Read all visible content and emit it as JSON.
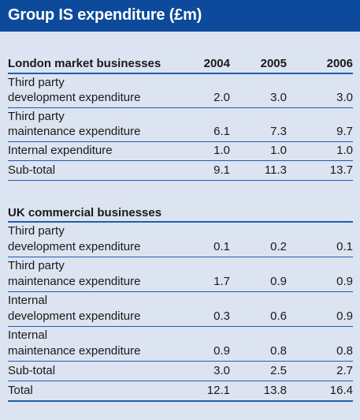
{
  "title": "Group IS expenditure (£m)",
  "years": [
    "2004",
    "2005",
    "2006"
  ],
  "london": {
    "heading": "London market businesses",
    "rows": [
      {
        "line1": "Third party",
        "line2": "development expenditure",
        "v": [
          "2.0",
          "3.0",
          "3.0"
        ]
      },
      {
        "line1": "Third party",
        "line2": "maintenance  expenditure",
        "v": [
          "6.1",
          "7.3",
          "9.7"
        ]
      },
      {
        "line1": "",
        "line2": "Internal expenditure",
        "v": [
          "1.0",
          "1.0",
          "1.0"
        ]
      },
      {
        "line1": "",
        "line2": "Sub-total",
        "v": [
          "9.1",
          "11.3",
          "13.7"
        ]
      }
    ]
  },
  "uk": {
    "heading": "UK commercial businesses",
    "rows": [
      {
        "line1": "Third party",
        "line2": "development expenditure",
        "v": [
          "0.1",
          "0.2",
          "0.1"
        ]
      },
      {
        "line1": "Third party",
        "line2": "maintenance expenditure",
        "v": [
          "1.7",
          "0.9",
          "0.9"
        ]
      },
      {
        "line1": "Internal",
        "line2": "development expenditure",
        "v": [
          "0.3",
          "0.6",
          "0.9"
        ]
      },
      {
        "line1": "Internal",
        "line2": "maintenance expenditure",
        "v": [
          "0.9",
          "0.8",
          "0.8"
        ]
      },
      {
        "line1": "",
        "line2": "Sub-total",
        "v": [
          "3.0",
          "2.5",
          "2.7"
        ]
      },
      {
        "line1": "",
        "line2": "Total",
        "v": [
          "12.1",
          "13.8",
          "16.4"
        ]
      }
    ]
  }
}
